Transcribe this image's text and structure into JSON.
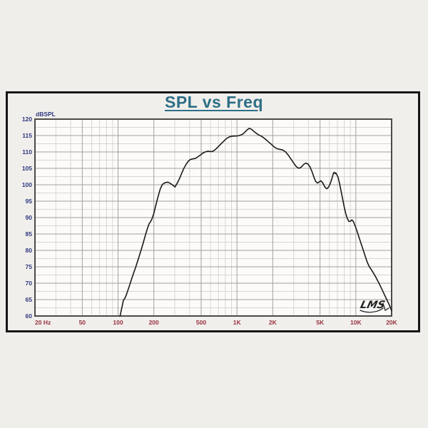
{
  "window": {
    "kind": "measurement-plot-window",
    "background": "#f1efec",
    "border_color": "#161616"
  },
  "chart_data": {
    "type": "line",
    "title": "SPL vs Freq",
    "ylabel": "dBSPL",
    "x_scale": "log",
    "xlim": [
      20,
      20000
    ],
    "ylim": [
      60,
      120
    ],
    "y_major_step": 5,
    "y_minor_step": 2.5,
    "grid": "on",
    "legend": "none",
    "y_ticks": [
      {
        "db": 120,
        "label": "120"
      },
      {
        "db": 115,
        "label": "115"
      },
      {
        "db": 110,
        "label": "110"
      },
      {
        "db": 105,
        "label": "105"
      },
      {
        "db": 100,
        "label": "100"
      },
      {
        "db": 95,
        "label": "95"
      },
      {
        "db": 90,
        "label": "90"
      },
      {
        "db": 85,
        "label": "85"
      },
      {
        "db": 80,
        "label": "80"
      },
      {
        "db": 75,
        "label": "75"
      },
      {
        "db": 70,
        "label": "70"
      },
      {
        "db": 65,
        "label": "65"
      },
      {
        "db": 60,
        "label": "60"
      }
    ],
    "x_ticks": [
      {
        "f": 20,
        "label": "20 Hz",
        "align": "start"
      },
      {
        "f": 50,
        "label": "50"
      },
      {
        "f": 100,
        "label": "100"
      },
      {
        "f": 200,
        "label": "200"
      },
      {
        "f": 500,
        "label": "500"
      },
      {
        "f": 1000,
        "label": "1K"
      },
      {
        "f": 2000,
        "label": "2K"
      },
      {
        "f": 5000,
        "label": "5K"
      },
      {
        "f": 10000,
        "label": "10K"
      },
      {
        "f": 20000,
        "label": "20K"
      }
    ],
    "x_major_gridlines": [
      50,
      100,
      200,
      500,
      1000,
      2000,
      5000,
      10000
    ],
    "x_minor_gridlines": [
      30,
      40,
      60,
      70,
      80,
      90,
      300,
      400,
      600,
      700,
      800,
      900,
      3000,
      4000,
      6000,
      7000,
      8000,
      9000
    ],
    "series": [
      {
        "name": "SPL response",
        "points": [
          [
            104,
            60
          ],
          [
            108,
            62.8
          ],
          [
            111,
            64.8
          ],
          [
            114,
            65.4
          ],
          [
            117,
            66.3
          ],
          [
            124,
            69
          ],
          [
            132,
            72
          ],
          [
            141,
            75
          ],
          [
            150,
            78
          ],
          [
            159,
            81
          ],
          [
            168,
            84
          ],
          [
            176,
            86.5
          ],
          [
            182,
            88
          ],
          [
            188,
            88.8
          ],
          [
            193,
            89.6
          ],
          [
            200,
            91.3
          ],
          [
            208,
            93.8
          ],
          [
            217,
            96.4
          ],
          [
            226,
            98.6
          ],
          [
            236,
            100.1
          ],
          [
            248,
            100.6
          ],
          [
            262,
            100.8
          ],
          [
            276,
            100.4
          ],
          [
            290,
            99.8
          ],
          [
            301,
            99.3
          ],
          [
            315,
            100.5
          ],
          [
            330,
            102
          ],
          [
            345,
            103.7
          ],
          [
            360,
            105.2
          ],
          [
            375,
            106.3
          ],
          [
            390,
            107.2
          ],
          [
            405,
            107.7
          ],
          [
            425,
            107.9
          ],
          [
            445,
            108
          ],
          [
            465,
            108.4
          ],
          [
            490,
            109
          ],
          [
            515,
            109.6
          ],
          [
            540,
            110
          ],
          [
            565,
            110.2
          ],
          [
            590,
            110.15
          ],
          [
            615,
            110.1
          ],
          [
            640,
            110.4
          ],
          [
            670,
            111
          ],
          [
            705,
            111.8
          ],
          [
            745,
            112.7
          ],
          [
            785,
            113.5
          ],
          [
            825,
            114.2
          ],
          [
            865,
            114.6
          ],
          [
            915,
            114.8
          ],
          [
            965,
            114.85
          ],
          [
            1015,
            114.9
          ],
          [
            1065,
            115.1
          ],
          [
            1115,
            115.4
          ],
          [
            1165,
            116
          ],
          [
            1215,
            116.7
          ],
          [
            1270,
            117.2
          ],
          [
            1330,
            116.9
          ],
          [
            1395,
            116.2
          ],
          [
            1465,
            115.6
          ],
          [
            1535,
            115.1
          ],
          [
            1605,
            114.8
          ],
          [
            1680,
            114.3
          ],
          [
            1760,
            113.7
          ],
          [
            1850,
            113
          ],
          [
            1950,
            112.3
          ],
          [
            2060,
            111.5
          ],
          [
            2170,
            111
          ],
          [
            2290,
            110.8
          ],
          [
            2420,
            110.6
          ],
          [
            2550,
            110.1
          ],
          [
            2690,
            109.1
          ],
          [
            2840,
            107.9
          ],
          [
            3000,
            106.6
          ],
          [
            3160,
            105.5
          ],
          [
            3320,
            105
          ],
          [
            3480,
            105.4
          ],
          [
            3640,
            106.2
          ],
          [
            3800,
            106.6
          ],
          [
            3960,
            106.3
          ],
          [
            4120,
            105.4
          ],
          [
            4280,
            104
          ],
          [
            4440,
            102.3
          ],
          [
            4600,
            101
          ],
          [
            4760,
            100.5
          ],
          [
            4920,
            100.9
          ],
          [
            5080,
            101.2
          ],
          [
            5240,
            100.7
          ],
          [
            5400,
            99.8
          ],
          [
            5570,
            99
          ],
          [
            5740,
            98.8
          ],
          [
            5920,
            99.4
          ],
          [
            6100,
            100.4
          ],
          [
            6290,
            101.9
          ],
          [
            6480,
            103.5
          ],
          [
            6580,
            103.8
          ],
          [
            6680,
            103.4
          ],
          [
            6780,
            103.6
          ],
          [
            6880,
            103.2
          ],
          [
            7090,
            102.3
          ],
          [
            7300,
            100.4
          ],
          [
            7520,
            98
          ],
          [
            7750,
            95.6
          ],
          [
            7990,
            93.2
          ],
          [
            8230,
            91.2
          ],
          [
            8480,
            89.7
          ],
          [
            8740,
            88.8
          ],
          [
            9010,
            88.9
          ],
          [
            9280,
            89.3
          ],
          [
            9570,
            88.7
          ],
          [
            9860,
            87.5
          ],
          [
            10200,
            86
          ],
          [
            10600,
            84.2
          ],
          [
            11000,
            82.4
          ],
          [
            11500,
            80.3
          ],
          [
            12000,
            78.2
          ],
          [
            12500,
            76.3
          ],
          [
            13000,
            75
          ],
          [
            13500,
            74.1
          ],
          [
            14000,
            73.2
          ],
          [
            14600,
            72.1
          ],
          [
            15200,
            70.9
          ],
          [
            15900,
            69.5
          ],
          [
            16600,
            68.1
          ],
          [
            17300,
            66.7
          ],
          [
            18100,
            65.2
          ],
          [
            18900,
            63.8
          ],
          [
            19800,
            62
          ],
          [
            20000,
            61.6
          ]
        ]
      }
    ],
    "annotations": [
      {
        "text": "LMS",
        "style": "handwritten-signature",
        "position": "bottom-right"
      }
    ],
    "colors": {
      "title": "#2e6f86",
      "y_tick_labels": "#2f3a80",
      "x_tick_labels": "#96323f",
      "curve": "#1b1b1b",
      "grid_minor": "#d8d6d2",
      "grid_major": "#a39f9a",
      "plot_frame": "#4c4a47",
      "plot_background": "#fcfbfa",
      "signature": "#252525"
    }
  }
}
